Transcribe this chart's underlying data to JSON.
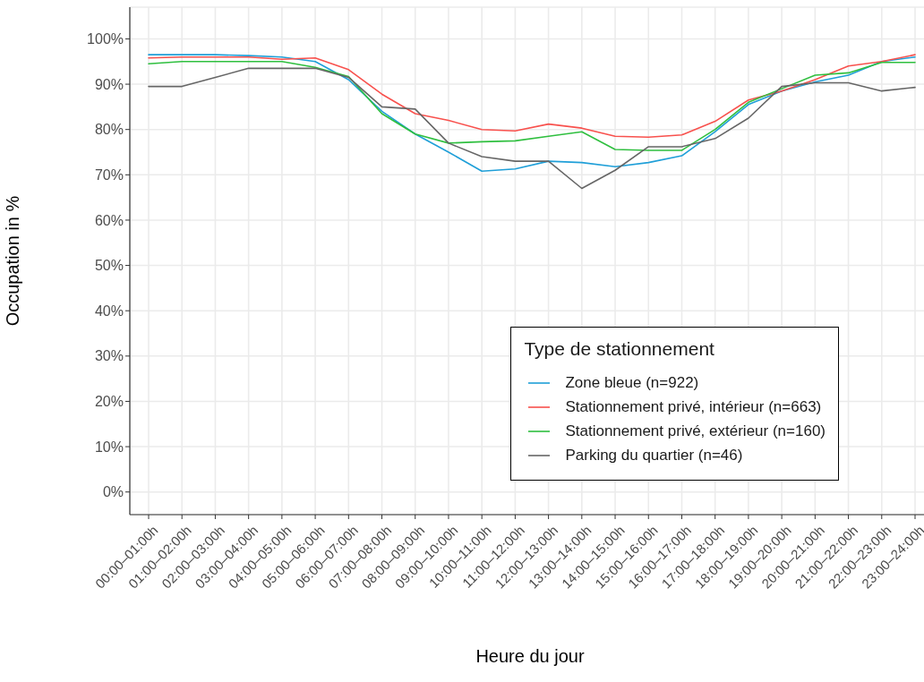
{
  "chart_data": {
    "type": "line",
    "xlabel": "Heure du jour",
    "ylabel": "Occupation in %",
    "legend_title": "Type de stationnement",
    "categories": [
      "00:00–01:00h",
      "01:00–02:00h",
      "02:00–03:00h",
      "03:00–04:00h",
      "04:00–05:00h",
      "05:00–06:00h",
      "06:00–07:00h",
      "07:00–08:00h",
      "08:00–09:00h",
      "09:00–10:00h",
      "10:00–11:00h",
      "11:00–12:00h",
      "12:00–13:00h",
      "13:00–14:00h",
      "14:00–15:00h",
      "15:00–16:00h",
      "16:00–17:00h",
      "17:00–18:00h",
      "18:00–19:00h",
      "19:00–20:00h",
      "20:00–21:00h",
      "21:00–22:00h",
      "22:00–23:00h",
      "23:00–24:00h"
    ],
    "series": [
      {
        "name": "Zone bleue (n=922)",
        "color": "#1f9fd8",
        "values": [
          96.5,
          96.5,
          96.5,
          96.3,
          96,
          95,
          91,
          84,
          79,
          75,
          70.8,
          71.3,
          73,
          72.7,
          71.8,
          72.7,
          74.2,
          79.5,
          85.5,
          88.5,
          90.5,
          92,
          95,
          96
        ]
      },
      {
        "name": "Stationnement privé, intérieur (n=663)",
        "color": "#f8514d",
        "values": [
          95.8,
          96,
          96,
          96,
          95.5,
          95.8,
          93.2,
          87.8,
          83.5,
          82,
          80,
          79.7,
          81.2,
          80.3,
          78.5,
          78.3,
          78.8,
          81.8,
          86.5,
          88.5,
          91,
          94,
          95,
          96.5
        ]
      },
      {
        "name": "Stationnement privé, extérieur (n=160)",
        "color": "#2fbf3f",
        "values": [
          94.5,
          95,
          95,
          95,
          95,
          93.7,
          91.7,
          83.5,
          79,
          77,
          77.3,
          77.5,
          78.5,
          79.5,
          75.6,
          75.4,
          75.4,
          80,
          86,
          89,
          92,
          92.5,
          94.8,
          94.8
        ]
      },
      {
        "name": "Parking du quartier (n=46)",
        "color": "#666666",
        "values": [
          89.5,
          89.5,
          91.5,
          93.5,
          93.5,
          93.5,
          91.5,
          85,
          84.5,
          77,
          74,
          73,
          73,
          67,
          71,
          76.2,
          76.2,
          78,
          82.5,
          89.5,
          90.3,
          90.3,
          88.5,
          89.3
        ]
      }
    ],
    "ylim": [
      -5,
      107
    ],
    "yticks": [
      {
        "value": 0,
        "label": "0%"
      },
      {
        "value": 10,
        "label": "10%"
      },
      {
        "value": 20,
        "label": "20%"
      },
      {
        "value": 30,
        "label": "30%"
      },
      {
        "value": 40,
        "label": "40%"
      },
      {
        "value": 50,
        "label": "50%"
      },
      {
        "value": 60,
        "label": "60%"
      },
      {
        "value": 70,
        "label": "70%"
      },
      {
        "value": 80,
        "label": "80%"
      },
      {
        "value": 90,
        "label": "90%"
      },
      {
        "value": 100,
        "label": "100%"
      }
    ],
    "grid": true,
    "legend": "bottom right",
    "marker": "none",
    "line_style": "solid"
  }
}
